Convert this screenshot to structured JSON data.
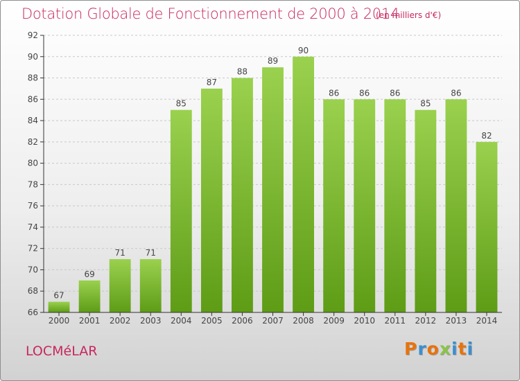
{
  "title": "Dotation Globale de Fonctionnement de 2000 à 2014",
  "unit_note": "(en milliers d'€)",
  "commune": "LOCMéLAR",
  "logo": {
    "text": "Proxiti",
    "colors": [
      "#e8730d",
      "#3a8fd0",
      "#e8730d",
      "#8bc34a",
      "#3a8fd0",
      "#e8730d",
      "#3a8fd0"
    ]
  },
  "colors": {
    "title": "#c8265f",
    "bar_light": "#9ad14e",
    "bar_dark": "#5e9c16",
    "axis": "#333333",
    "grid": "#c8c8c8",
    "label": "#444444"
  },
  "chart_data": {
    "type": "bar",
    "categories": [
      "2000",
      "2001",
      "2002",
      "2003",
      "2004",
      "2005",
      "2006",
      "2007",
      "2008",
      "2009",
      "2010",
      "2011",
      "2012",
      "2013",
      "2014"
    ],
    "values": [
      67,
      69,
      71,
      71,
      85,
      87,
      88,
      89,
      90,
      86,
      86,
      86,
      85,
      86,
      82
    ],
    "ylim": [
      66,
      92
    ],
    "yticks": [
      66,
      68,
      70,
      72,
      74,
      76,
      78,
      80,
      82,
      84,
      86,
      88,
      90,
      92
    ],
    "grid": "horizontal",
    "xlabel": "",
    "ylabel": ""
  }
}
